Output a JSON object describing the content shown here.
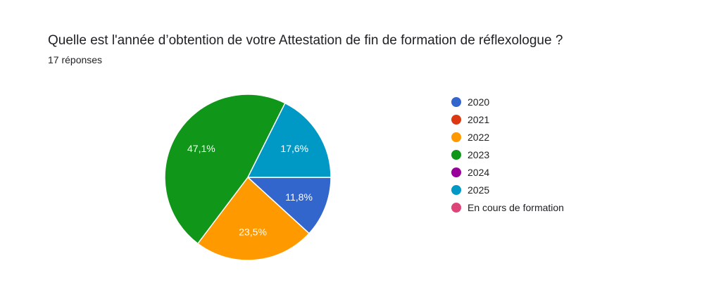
{
  "question": {
    "title": "Quelle est l'année d’obtention de votre Attestation de fin de formation de réflexologue ?",
    "responses": "17 réponses"
  },
  "chart_data": {
    "type": "pie",
    "title": "Quelle est l'année d’obtention de votre Attestation de fin de formation de réflexologue ?",
    "categories": [
      "2020",
      "2021",
      "2022",
      "2023",
      "2024",
      "2025",
      "En cours de formation"
    ],
    "values": [
      11.8,
      0,
      23.5,
      47.1,
      0,
      17.6,
      0
    ],
    "counts": [
      2,
      0,
      4,
      8,
      0,
      3,
      0
    ],
    "labels": [
      "11,8%",
      "",
      "23,5%",
      "47,1%",
      "",
      "17,6%",
      ""
    ],
    "colors": [
      "#3366cc",
      "#dc3912",
      "#ff9900",
      "#109618",
      "#990099",
      "#0099c6",
      "#dd4477"
    ],
    "legend_position": "right"
  }
}
